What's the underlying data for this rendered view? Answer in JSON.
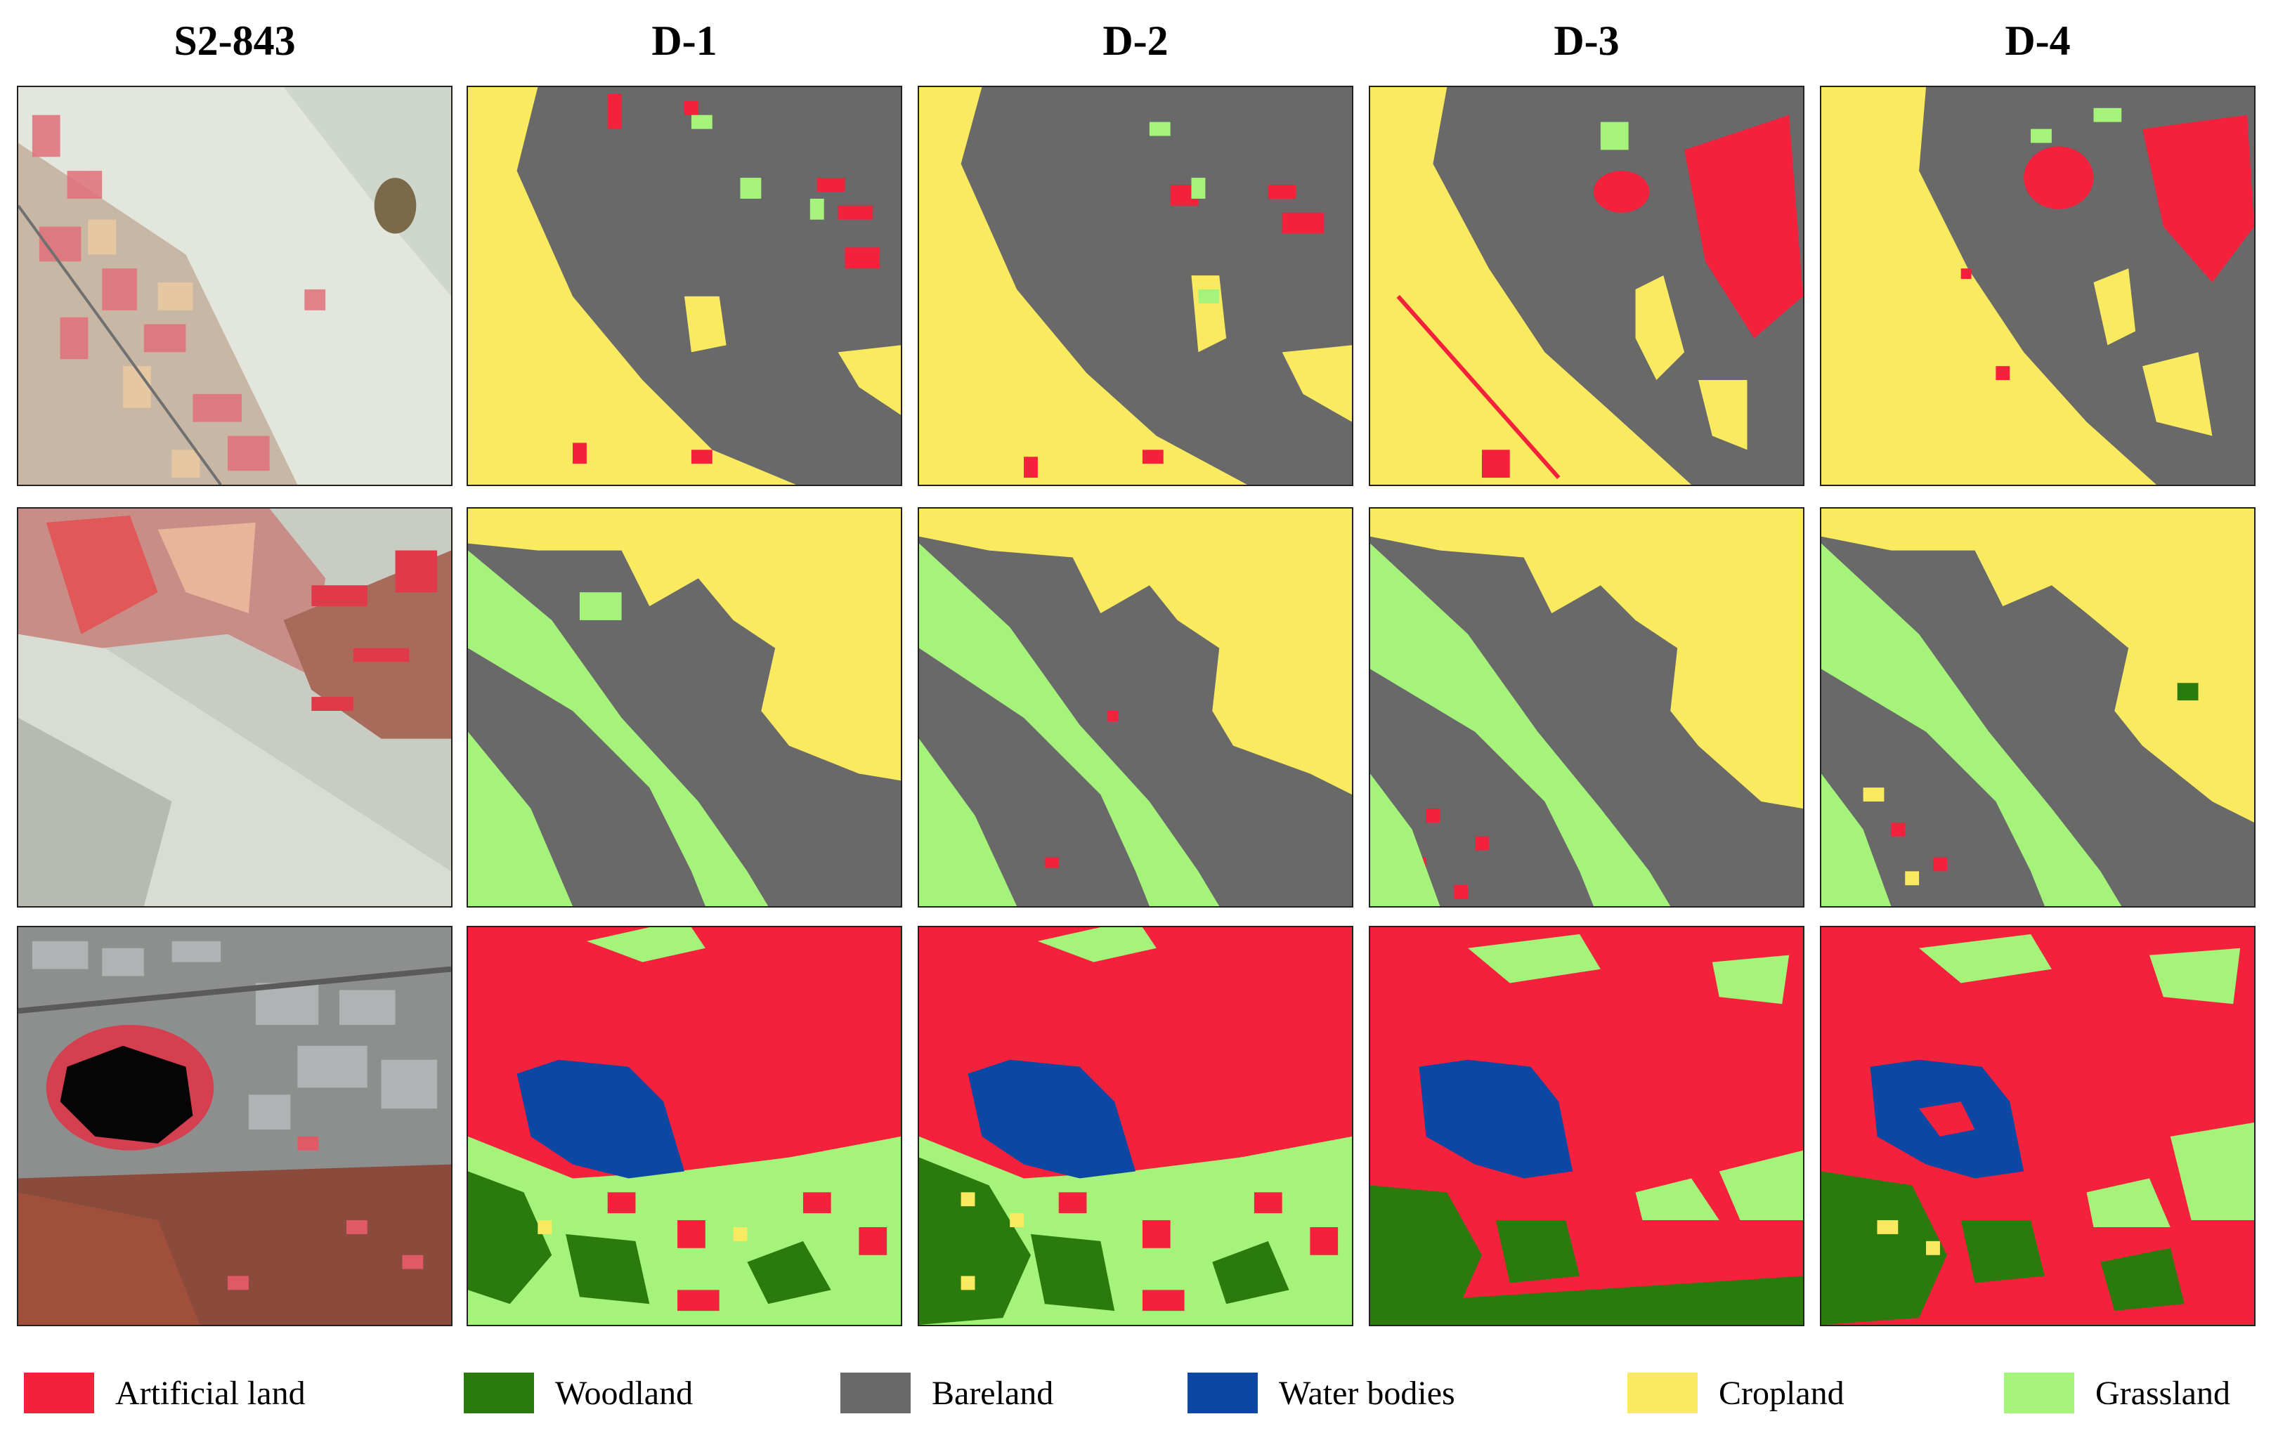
{
  "columns": [
    {
      "id": "s2",
      "label": "S2-843"
    },
    {
      "id": "d1",
      "label": "D-1"
    },
    {
      "id": "d2",
      "label": "D-2"
    },
    {
      "id": "d3",
      "label": "D-3"
    },
    {
      "id": "d4",
      "label": "D-4"
    }
  ],
  "legend": [
    {
      "label": "Artificial land",
      "color": "#f4213c"
    },
    {
      "label": "Woodland",
      "color": "#2a7a0e"
    },
    {
      "label": "Bareland",
      "color": "#696969"
    },
    {
      "label": "Water bodies",
      "color": "#0b47a3"
    },
    {
      "label": "Cropland",
      "color": "#f9ea60"
    },
    {
      "label": "Grassland",
      "color": "#a5f37a"
    }
  ]
}
